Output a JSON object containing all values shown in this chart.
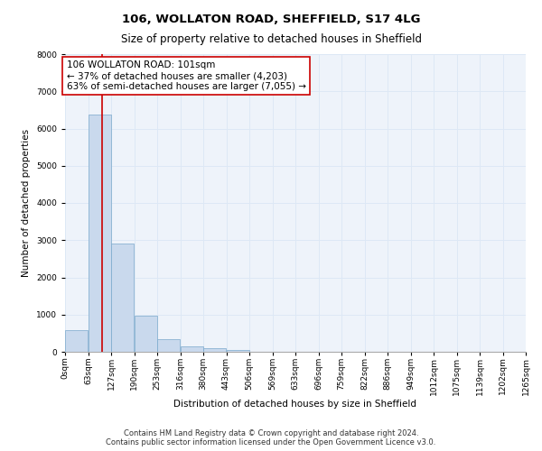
{
  "title": "106, WOLLATON ROAD, SHEFFIELD, S17 4LG",
  "subtitle": "Size of property relative to detached houses in Sheffield",
  "xlabel": "Distribution of detached houses by size in Sheffield",
  "ylabel": "Number of detached properties",
  "bar_values": [
    580,
    6370,
    2900,
    960,
    350,
    155,
    100,
    60,
    5,
    3,
    2,
    1,
    1,
    1,
    0,
    0,
    0,
    0,
    0,
    0
  ],
  "bin_labels": [
    "0sqm",
    "63sqm",
    "127sqm",
    "190sqm",
    "253sqm",
    "316sqm",
    "380sqm",
    "443sqm",
    "506sqm",
    "569sqm",
    "633sqm",
    "696sqm",
    "759sqm",
    "822sqm",
    "886sqm",
    "949sqm",
    "1012sqm",
    "1075sqm",
    "1139sqm",
    "1202sqm",
    "1265sqm"
  ],
  "bar_color": "#c9d9ed",
  "bar_edge_color": "#7aa8cc",
  "annotation_line1": "106 WOLLATON ROAD: 101sqm",
  "annotation_line2": "← 37% of detached houses are smaller (4,203)",
  "annotation_line3": "63% of semi-detached houses are larger (7,055) →",
  "annotation_box_color": "#cc0000",
  "property_line_x": 101,
  "bin_width": 63,
  "ylim": [
    0,
    8000
  ],
  "yticks": [
    0,
    1000,
    2000,
    3000,
    4000,
    5000,
    6000,
    7000,
    8000
  ],
  "grid_color": "#dde8f5",
  "background_color": "#eef3fa",
  "footer_line1": "Contains HM Land Registry data © Crown copyright and database right 2024.",
  "footer_line2": "Contains public sector information licensed under the Open Government Licence v3.0.",
  "title_fontsize": 9.5,
  "subtitle_fontsize": 8.5,
  "annotation_fontsize": 7.5,
  "axis_label_fontsize": 7.5,
  "ylabel_fontsize": 7.5,
  "tick_fontsize": 6.5,
  "footer_fontsize": 6
}
